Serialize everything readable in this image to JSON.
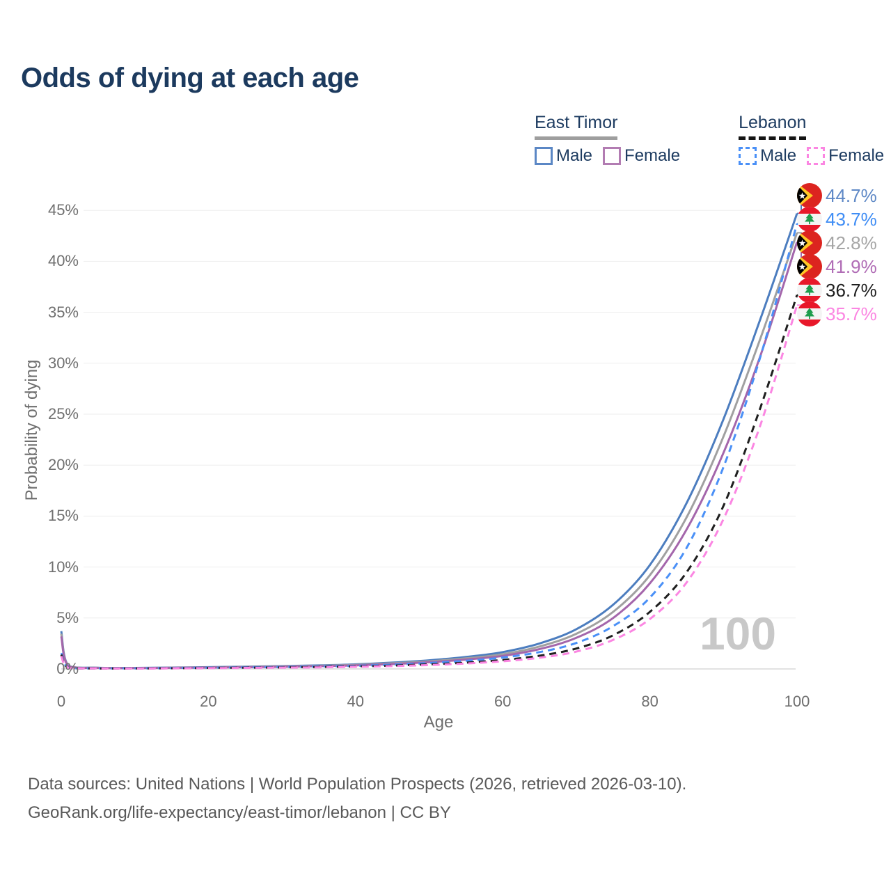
{
  "title": "Odds of dying at each age",
  "watermark": "100",
  "theme": {
    "title_color": "#1c3a5e",
    "tick_color": "#6f6f6f",
    "grid_color": "#ededed",
    "axis_line_color": "#d8d8d8",
    "watermark_color": "#c8c8c8",
    "footer_color": "#595959"
  },
  "legend": {
    "groups": [
      {
        "id": "east-timor",
        "label": "East Timor",
        "line_style": "solid",
        "underline_color": "#9e9e9e",
        "items": [
          {
            "label": "Male",
            "swatch_color": "#5b87c5",
            "swatch_style": "solid"
          },
          {
            "label": "Female",
            "swatch_color": "#b27cb2",
            "swatch_style": "solid"
          }
        ]
      },
      {
        "id": "lebanon",
        "label": "Lebanon",
        "line_style": "dashed",
        "underline_color": "#141414",
        "items": [
          {
            "label": "Male",
            "swatch_color": "#4a90f7",
            "swatch_style": "dashed"
          },
          {
            "label": "Female",
            "swatch_color": "#fb86e2",
            "swatch_style": "dashed"
          }
        ]
      }
    ]
  },
  "chart_data": {
    "type": "line",
    "title": "Odds of dying at each age",
    "xlabel": "Age",
    "ylabel": "Probability of dying",
    "x_ticks": [
      0,
      20,
      40,
      60,
      80,
      100
    ],
    "y_tick_labels": [
      "0%",
      "5%",
      "10%",
      "15%",
      "20%",
      "25%",
      "30%",
      "35%",
      "40%",
      "45%"
    ],
    "y_tick_values": [
      0,
      5,
      10,
      15,
      20,
      25,
      30,
      35,
      40,
      45
    ],
    "xlim": [
      0,
      100
    ],
    "ylim_pct": [
      0,
      47
    ],
    "grid": "horizontal",
    "legend_position": "top-right",
    "ages": [
      0,
      1,
      5,
      10,
      15,
      20,
      25,
      30,
      35,
      40,
      45,
      50,
      55,
      60,
      65,
      70,
      75,
      80,
      85,
      90,
      95,
      100
    ],
    "series": [
      {
        "name": "East Timor Male",
        "country": "East Timor",
        "sex": "Male",
        "color": "#4c7dbf",
        "dash": false,
        "flag": "east-timor",
        "end_label": "44.7%",
        "end_label_color": "#5e88c6",
        "values_pct": [
          3.7,
          0.3,
          0.12,
          0.1,
          0.14,
          0.18,
          0.22,
          0.28,
          0.35,
          0.45,
          0.62,
          0.85,
          1.18,
          1.65,
          2.5,
          3.9,
          6.3,
          10.2,
          16.3,
          24.5,
          34.3,
          44.7
        ]
      },
      {
        "name": "East Timor Both sexes",
        "country": "East Timor",
        "sex": "Both",
        "color": "#a0a0a0",
        "dash": false,
        "flag": "east-timor",
        "end_label": "42.8%",
        "end_label_color": "#a5a5a5",
        "values_pct": [
          3.45,
          0.28,
          0.11,
          0.09,
          0.12,
          0.16,
          0.2,
          0.25,
          0.31,
          0.4,
          0.55,
          0.75,
          1.04,
          1.45,
          2.2,
          3.45,
          5.6,
          9.2,
          14.9,
          22.8,
          32.4,
          42.8
        ]
      },
      {
        "name": "East Timor Female",
        "country": "East Timor",
        "sex": "Female",
        "color": "#a466ab",
        "dash": false,
        "flag": "east-timor",
        "end_label": "41.9%",
        "end_label_color": "#b06cb5",
        "values_pct": [
          3.2,
          0.26,
          0.1,
          0.08,
          0.11,
          0.14,
          0.17,
          0.21,
          0.27,
          0.35,
          0.48,
          0.66,
          0.92,
          1.28,
          1.95,
          3.05,
          5.0,
          8.4,
          13.7,
          21.2,
          30.7,
          41.9
        ]
      },
      {
        "name": "Lebanon Male",
        "country": "Lebanon",
        "sex": "Male",
        "color": "#4a90f7",
        "dash": true,
        "flag": "lebanon",
        "end_label": "43.7%",
        "end_label_color": "#3f8df5",
        "values_pct": [
          1.55,
          0.12,
          0.06,
          0.06,
          0.09,
          0.12,
          0.15,
          0.19,
          0.24,
          0.31,
          0.42,
          0.58,
          0.8,
          1.12,
          1.65,
          2.55,
          4.2,
          7.0,
          11.9,
          19.8,
          30.6,
          43.7
        ]
      },
      {
        "name": "Lebanon Both sexes",
        "country": "Lebanon",
        "sex": "Both",
        "color": "#1f1f1f",
        "dash": true,
        "flag": "lebanon",
        "end_label": "36.7%",
        "end_label_color": "#1f1f1f",
        "values_pct": [
          1.4,
          0.11,
          0.05,
          0.05,
          0.07,
          0.1,
          0.12,
          0.15,
          0.19,
          0.25,
          0.33,
          0.45,
          0.62,
          0.88,
          1.3,
          2.0,
          3.3,
          5.6,
          9.5,
          16.0,
          25.6,
          36.7
        ]
      },
      {
        "name": "Lebanon Female",
        "country": "Lebanon",
        "sex": "Female",
        "color": "#fb86e2",
        "dash": true,
        "flag": "lebanon",
        "end_label": "35.7%",
        "end_label_color": "#fb86e2",
        "values_pct": [
          1.25,
          0.1,
          0.05,
          0.04,
          0.06,
          0.08,
          0.1,
          0.13,
          0.16,
          0.21,
          0.28,
          0.38,
          0.53,
          0.75,
          1.1,
          1.7,
          2.85,
          4.9,
          8.5,
          14.7,
          23.9,
          35.7
        ]
      }
    ]
  },
  "footer": {
    "line1": "Data sources: United Nations | World Population Prospects (2026, retrieved 2026-03-10).",
    "line2": "GeoRank.org/life-expectancy/east-timor/lebanon | CC BY"
  }
}
